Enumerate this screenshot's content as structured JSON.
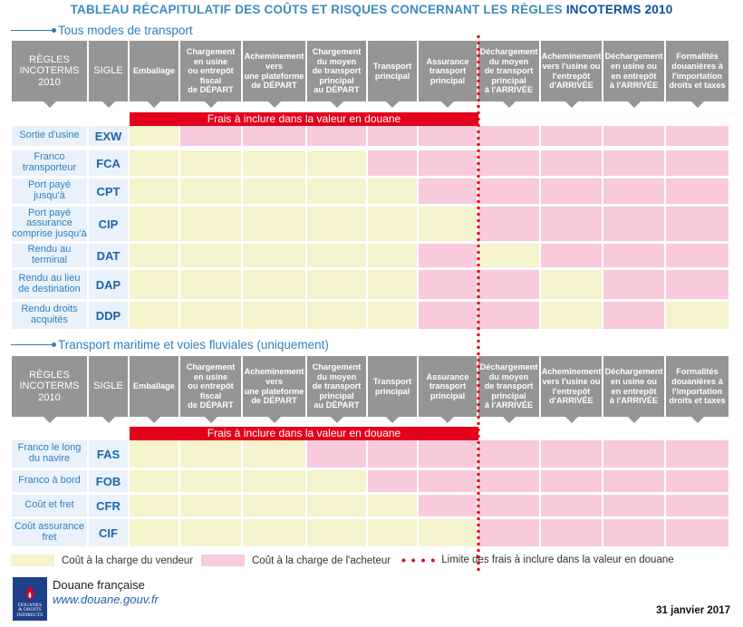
{
  "title": {
    "main": "TABLEAU RÉCAPITULATIF DES COÛTS ET RISQUES CONCERNANT LES RÈGLES ",
    "highlight": "INCOTERMS 2010"
  },
  "headers": {
    "regles": [
      "RÈGLES",
      "INCOTERMS",
      "2010"
    ],
    "sigle": "SIGLE",
    "columns": [
      [
        "Emballage"
      ],
      [
        "Chargement",
        "en usine",
        "ou entrepôt",
        "fiscal",
        "de DÉPART"
      ],
      [
        "Acheminement",
        "vers",
        "une plateforme",
        "de DÉPART"
      ],
      [
        "Chargement",
        "du moyen",
        "de transport",
        "principal",
        "au DÉPART"
      ],
      [
        "Transport",
        "principal"
      ],
      [
        "Assurance",
        "transport",
        "principal"
      ],
      [
        "Déchargement",
        "du moyen",
        "de transport",
        "principal",
        "à l'ARRIVÉE"
      ],
      [
        "Acheminement",
        "vers l'usine ou",
        "l'entrepôt",
        "d'ARRIVÉE"
      ],
      [
        "Déchargement",
        "en usine ou",
        "en entrepôt",
        "à l'ARRIVÉE"
      ],
      [
        "Formalités",
        "douanières à",
        "l'importation",
        "droits et taxes"
      ]
    ]
  },
  "band_text": "Frais à inclure dans la valeur en douane",
  "sections": [
    {
      "title": "Tous modes de transport",
      "rows": [
        {
          "label": "Sortie d'usine",
          "code": "EXW",
          "cells": "vaaaaaaaaa"
        },
        {
          "label": "Franco transporteur",
          "code": "FCA",
          "cells": "vvvvaaaaaa"
        },
        {
          "label": "Port payé jusqu'à",
          "code": "CPT",
          "cells": "vvvvvaaaaa"
        },
        {
          "label": "Port payé assurance comprise jusqu'à",
          "code": "CIP",
          "cells": "vvvvvvaaaa"
        },
        {
          "label": "Rendu au terminal",
          "code": "DAT",
          "cells": "vvvvvavaaa"
        },
        {
          "label": "Rendu au lieu de destination",
          "code": "DAP",
          "cells": "vvvvvaavaa"
        },
        {
          "label": "Rendu droits acquités",
          "code": "DDP",
          "cells": "vvvvvaavav"
        }
      ]
    },
    {
      "title": "Transport maritime et voies fluviales (uniquement)",
      "rows": [
        {
          "label": "Franco le long du navire",
          "code": "FAS",
          "cells": "vvvaaaaaaa"
        },
        {
          "label": "Franco à bord",
          "code": "FOB",
          "cells": "vvvvaaaaaa"
        },
        {
          "label": "Coût et fret",
          "code": "CFR",
          "cells": "vvvvvaaaaa"
        },
        {
          "label": "Coût assurance fret",
          "code": "CIF",
          "cells": "vvvvvvaaaa"
        }
      ]
    }
  ],
  "legend": {
    "vendeur": "Coût à la charge du vendeur",
    "acheteur": "Coût à la charge de l'acheteur",
    "limite": "Limite des frais à inclure dans la valeur en douane",
    "dots": "• • • •"
  },
  "colors": {
    "vendeur": "#f5f3cd",
    "acheteur": "#f8cadb",
    "limit": "#e3001b",
    "header": "#959595"
  },
  "footer": {
    "org": "Douane française",
    "url": "www.douane.gouv.fr",
    "date": "31 janvier 2017",
    "logo_lines": [
      "DOUANES",
      "& DROITS",
      "INDIRECTS"
    ]
  }
}
